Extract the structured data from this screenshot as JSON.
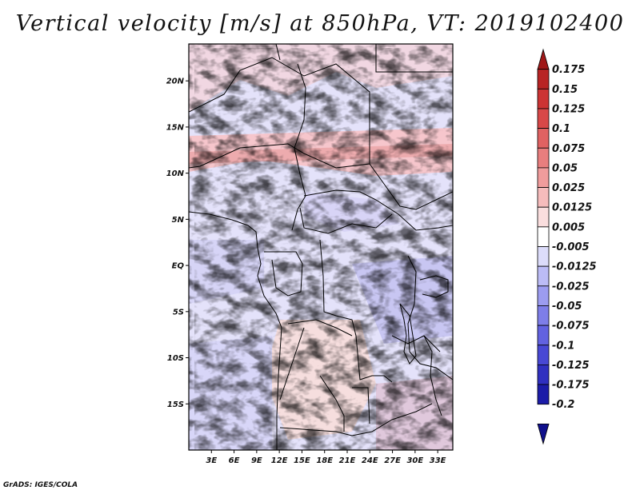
{
  "title": "Vertical velocity [m/s] at 850hPa, VT: 2019102400",
  "credit": "GrADS: IGES/COLA",
  "map": {
    "variable": "Vertical velocity",
    "units": "m/s",
    "level": "850hPa",
    "valid_time": "2019102400",
    "lon_range": [
      0,
      35
    ],
    "lat_range": [
      -20,
      24
    ],
    "lon_ticks": [
      {
        "value": 3,
        "label": "3E"
      },
      {
        "value": 6,
        "label": "6E"
      },
      {
        "value": 9,
        "label": "9E"
      },
      {
        "value": 12,
        "label": "12E"
      },
      {
        "value": 15,
        "label": "15E"
      },
      {
        "value": 18,
        "label": "18E"
      },
      {
        "value": 21,
        "label": "21E"
      },
      {
        "value": 24,
        "label": "24E"
      },
      {
        "value": 27,
        "label": "27E"
      },
      {
        "value": 30,
        "label": "30E"
      },
      {
        "value": 33,
        "label": "33E"
      }
    ],
    "lat_ticks": [
      {
        "value": 20,
        "label": "20N"
      },
      {
        "value": 15,
        "label": "15N"
      },
      {
        "value": 10,
        "label": "10N"
      },
      {
        "value": 5,
        "label": "5N"
      },
      {
        "value": 0,
        "label": "EQ"
      },
      {
        "value": -5,
        "label": "5S"
      },
      {
        "value": -10,
        "label": "10S"
      },
      {
        "value": -15,
        "label": "15S"
      }
    ]
  },
  "colorbar": {
    "labels": [
      "0.175",
      "0.15",
      "0.125",
      "0.1",
      "0.075",
      "0.05",
      "0.025",
      "0.0125",
      "0.005",
      "-0.005",
      "-0.0125",
      "-0.025",
      "-0.05",
      "-0.075",
      "-0.1",
      "-0.125",
      "-0.175",
      "-0.2"
    ],
    "colors": [
      "#a01818",
      "#b82424",
      "#cc3434",
      "#d84848",
      "#e06262",
      "#e87e7e",
      "#f09c9c",
      "#f6bcbc",
      "#fadede",
      "#ffffff",
      "#dcdcfa",
      "#bcbcf6",
      "#9c9cf0",
      "#7e7ee8",
      "#6262e0",
      "#4848d4",
      "#3030c0",
      "#1c1ca8",
      "#10108c"
    ]
  }
}
